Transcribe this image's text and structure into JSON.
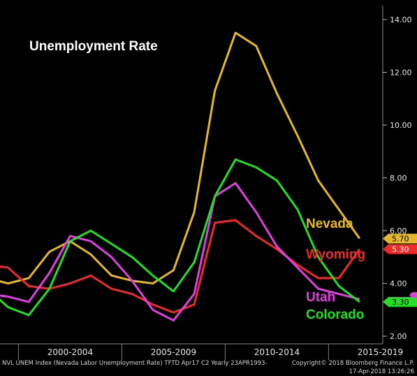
{
  "chart_data": {
    "type": "line",
    "title": "Unemployment Rate",
    "x": [
      1998,
      1999,
      2000,
      2001,
      2002,
      2003,
      2004,
      2005,
      2006,
      2007,
      2008,
      2009,
      2010,
      2011,
      2012,
      2013,
      2014,
      2015,
      2016,
      2017
    ],
    "series": [
      {
        "name": "Nevada",
        "color": "#e6b828",
        "values": [
          4.2,
          4.0,
          4.2,
          5.2,
          5.6,
          5.1,
          4.3,
          4.1,
          4.0,
          4.5,
          6.7,
          11.3,
          13.5,
          13.0,
          11.2,
          9.6,
          7.9,
          6.8,
          5.7,
          null
        ],
        "last_value": "5.70"
      },
      {
        "name": "Wyoming",
        "color": "#ee2a2a",
        "values": [
          4.7,
          4.6,
          3.9,
          3.8,
          4.0,
          4.3,
          3.8,
          3.6,
          3.2,
          2.9,
          3.2,
          6.3,
          6.4,
          5.8,
          5.3,
          4.7,
          4.2,
          4.2,
          5.3,
          null
        ],
        "last_value": "5.30"
      },
      {
        "name": "Utah",
        "color": "#e040e0",
        "values": [
          3.6,
          3.5,
          3.3,
          4.4,
          5.8,
          5.6,
          5.0,
          4.1,
          3.0,
          2.6,
          3.6,
          7.3,
          7.8,
          6.7,
          5.4,
          4.6,
          3.8,
          3.6,
          3.4,
          null
        ],
        "last_value": null
      },
      {
        "name": "Colorado",
        "color": "#22e022",
        "values": [
          3.8,
          3.1,
          2.8,
          3.8,
          5.6,
          6.0,
          5.5,
          5.0,
          4.3,
          3.7,
          4.8,
          7.3,
          8.7,
          8.4,
          7.9,
          6.8,
          5.0,
          3.9,
          3.3,
          null
        ],
        "last_value": "3.30"
      }
    ],
    "x_categories": [
      "2000-2004",
      "2005-2009",
      "2010-2014",
      "2015-2019"
    ],
    "y_ticks": [
      "2.00",
      "4.00",
      "6.00",
      "8.00",
      "10.00",
      "12.00",
      "14.00"
    ],
    "ylim": [
      1.7,
      14.9
    ],
    "grid": false
  },
  "footer": {
    "left": "NVL UNEM Index (Nevada Labor Unemployment Rate) TFTD Apr17 C2  Yearly 23APR1993-",
    "right_line1": "Copyright© 2018 Bloomberg Finance L.P.",
    "right_line2": "17-Apr-2018 13:26:26"
  }
}
